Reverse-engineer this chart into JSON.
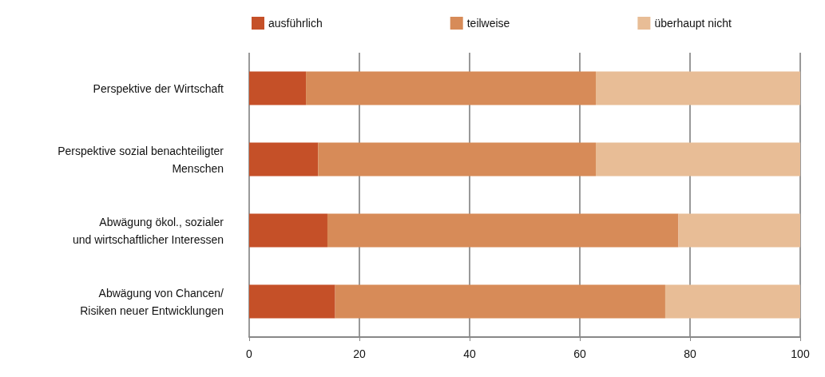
{
  "chart_data": {
    "type": "bar",
    "orientation": "horizontal",
    "stacked": true,
    "categories": [
      "Perspektive der Wirtschaft",
      "Perspektive sozial benachteiligter\nMenschen",
      "Abwägung ökol., sozialer\nund wirtschaftlicher Interessen",
      "Abwägung von Chancen/\nRisiken neuer Entwicklungen"
    ],
    "series": [
      {
        "name": "ausführlich",
        "color": "#c55028",
        "values": [
          10.3,
          12.5,
          14.2,
          15.6
        ]
      },
      {
        "name": "teilweise",
        "color": "#d78b58",
        "values": [
          52.6,
          50.4,
          63.7,
          59.9
        ]
      },
      {
        "name": "überhaupt nicht",
        "color": "#e8bd96",
        "values": [
          37.1,
          37.1,
          22.1,
          24.5
        ]
      }
    ],
    "xlim": [
      0,
      100
    ],
    "xticks": [
      0,
      20,
      40,
      60,
      80,
      100
    ],
    "grid": "x",
    "legend": "top"
  }
}
